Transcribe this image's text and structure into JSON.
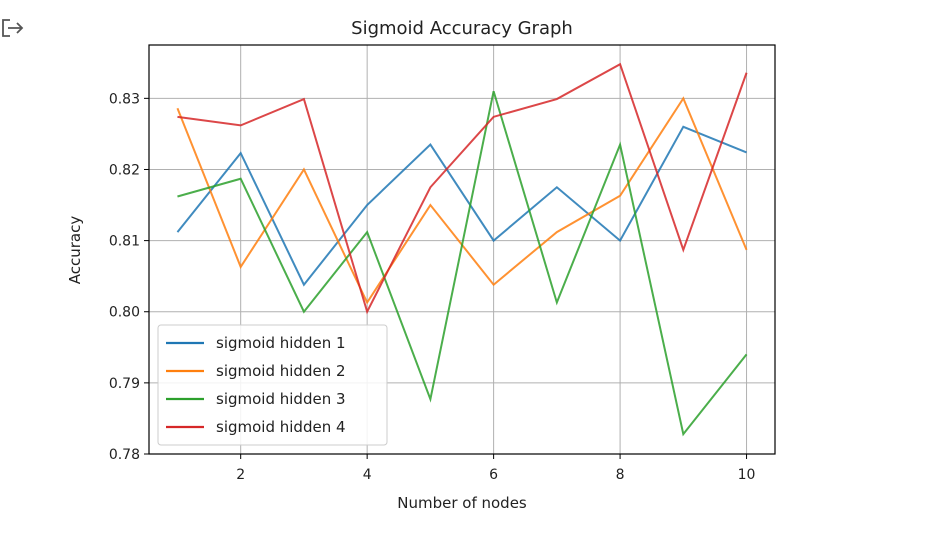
{
  "output_icon": "output-redirect-icon",
  "chart_data": {
    "type": "line",
    "title": "Sigmoid Accuracy Graph",
    "xlabel": "Number of nodes",
    "ylabel": "Accuracy",
    "xlim": [
      0.55,
      10.45
    ],
    "ylim": [
      0.78,
      0.8375
    ],
    "xticks": [
      2,
      4,
      6,
      8,
      10
    ],
    "yticks": [
      0.78,
      0.79,
      0.8,
      0.81,
      0.82,
      0.83
    ],
    "ytick_labels": [
      "0.78",
      "0.79",
      "0.80",
      "0.81",
      "0.82",
      "0.83"
    ],
    "grid": true,
    "legend_position": "lower-left",
    "x": [
      1,
      2,
      3,
      4,
      5,
      6,
      7,
      8,
      9,
      10
    ],
    "series": [
      {
        "name": "sigmoid hidden 1",
        "color": "#1f77b4",
        "values": [
          0.8112,
          0.8223,
          0.8038,
          0.815,
          0.8235,
          0.81,
          0.8175,
          0.81,
          0.826,
          0.8224
        ]
      },
      {
        "name": "sigmoid hidden 2",
        "color": "#ff7f0e",
        "values": [
          0.8286,
          0.8063,
          0.82,
          0.8013,
          0.815,
          0.8038,
          0.8112,
          0.8163,
          0.83,
          0.8087
        ]
      },
      {
        "name": "sigmoid hidden 3",
        "color": "#2ca02c",
        "values": [
          0.8162,
          0.8187,
          0.8,
          0.8112,
          0.7877,
          0.831,
          0.8013,
          0.8235,
          0.7828,
          0.794
        ]
      },
      {
        "name": "sigmoid hidden 4",
        "color": "#d62728",
        "values": [
          0.8274,
          0.8262,
          0.8299,
          0.8,
          0.8175,
          0.8274,
          0.8299,
          0.8348,
          0.8087,
          0.8336
        ]
      }
    ]
  }
}
